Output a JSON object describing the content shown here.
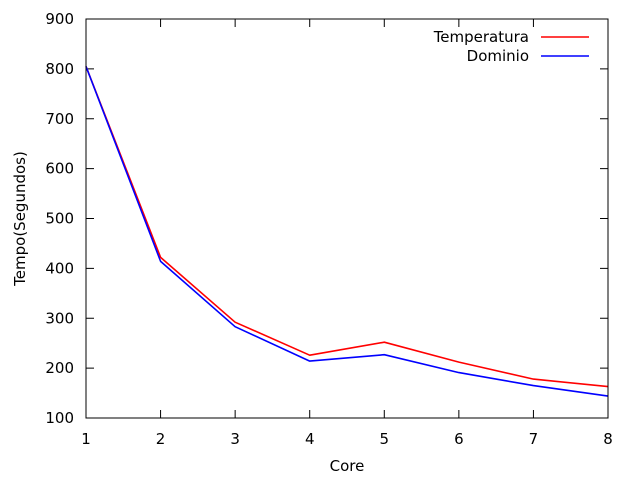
{
  "chart_data": {
    "type": "line",
    "title": "",
    "xlabel": "Core",
    "ylabel": "Tempo(Segundos)",
    "x": [
      1,
      2,
      3,
      4,
      5,
      6,
      7,
      8
    ],
    "xlim": [
      1,
      8
    ],
    "ylim": [
      100,
      900
    ],
    "xticks": [
      1,
      2,
      3,
      4,
      5,
      6,
      7,
      8
    ],
    "yticks": [
      100,
      200,
      300,
      400,
      500,
      600,
      700,
      800,
      900
    ],
    "grid": false,
    "legend_position": "top-right",
    "series": [
      {
        "name": "Temperatura",
        "color": "#ff0000",
        "values": [
          805,
          422,
          292,
          226,
          252,
          212,
          178,
          163
        ]
      },
      {
        "name": "Dominio",
        "color": "#0000ff",
        "values": [
          805,
          414,
          283,
          214,
          227,
          191,
          165,
          144
        ]
      }
    ]
  }
}
